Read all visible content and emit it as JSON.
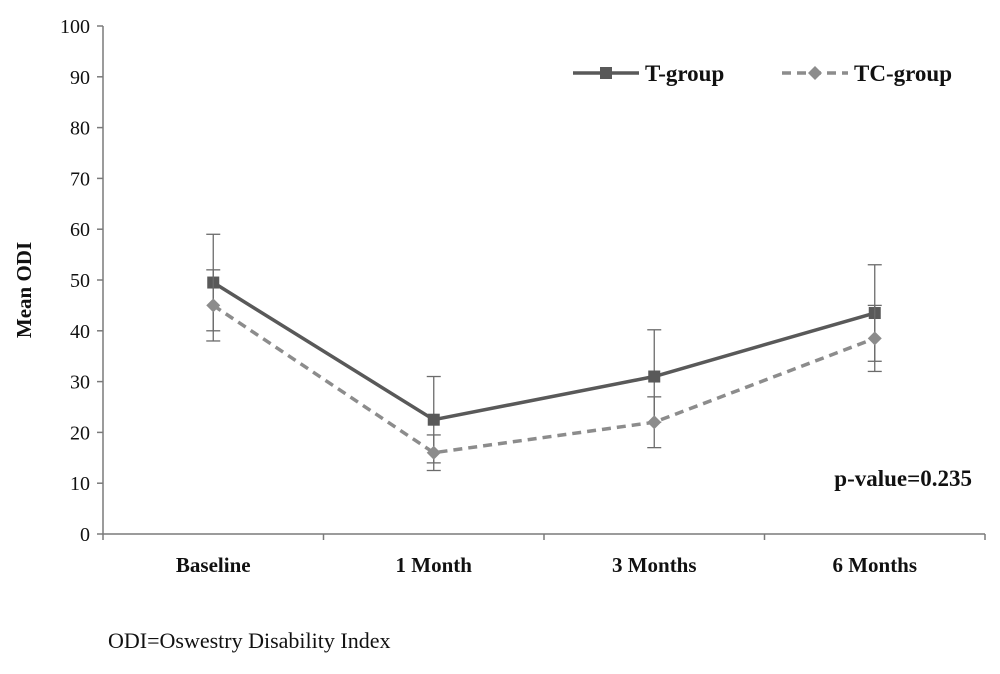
{
  "chart_data": {
    "type": "line",
    "title": "",
    "xlabel": "",
    "ylabel": "Mean ODI",
    "categories": [
      "Baseline",
      "1 Month",
      "3 Months",
      "6 Months"
    ],
    "ylim": [
      0,
      100
    ],
    "yticks": [
      0,
      10,
      20,
      30,
      40,
      50,
      60,
      70,
      80,
      90,
      100
    ],
    "grid": false,
    "legend_position": "top-right",
    "series": [
      {
        "name": "T-group",
        "line_style": "solid",
        "marker": "square",
        "color": "#595959",
        "values": [
          49.5,
          22.5,
          31,
          43.5
        ],
        "error_low": [
          40,
          14,
          22,
          34
        ],
        "error_high": [
          59,
          31,
          40.2,
          53
        ]
      },
      {
        "name": "TC-group",
        "line_style": "dashed",
        "marker": "diamond",
        "color": "#8c8c8c",
        "values": [
          45,
          16,
          22,
          38.5
        ],
        "error_low": [
          38,
          12.5,
          17,
          32
        ],
        "error_high": [
          52,
          19.5,
          27,
          45
        ]
      }
    ],
    "annotations": [
      "p-value=0.235"
    ]
  },
  "footnote": "ODI=Oswestry Disability Index"
}
